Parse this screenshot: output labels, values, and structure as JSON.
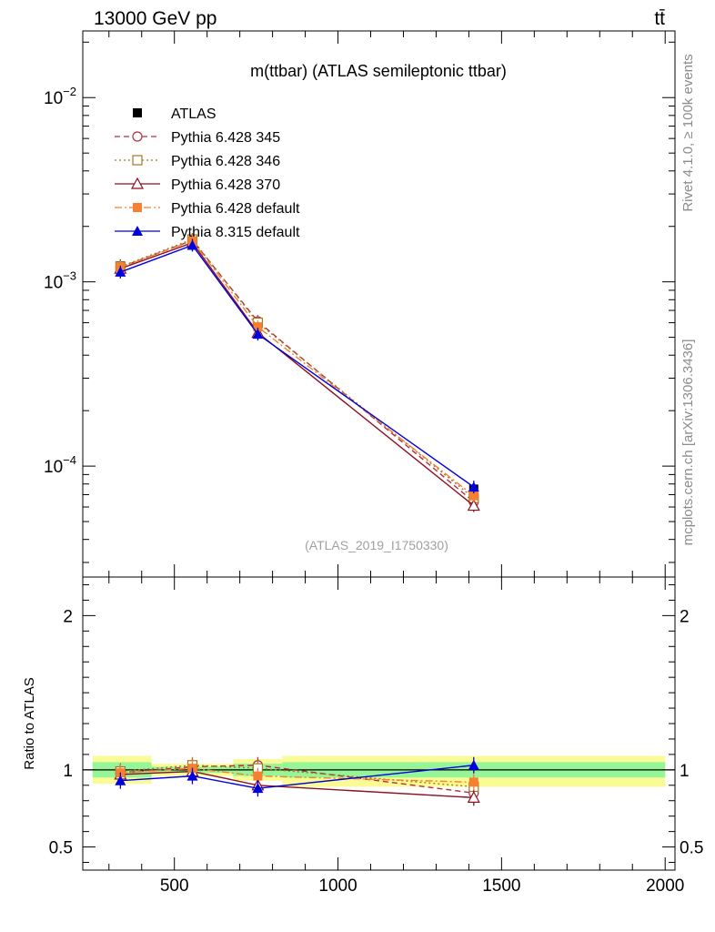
{
  "header": {
    "left": "13000 GeV pp",
    "right": "tt̄"
  },
  "side_labels": {
    "rivet": "Rivet 4.1.0, ≥ 100k events",
    "mcplots": "mcplots.cern.ch [arXiv:1306.3436]"
  },
  "chart_data": [
    {
      "type": "line",
      "panel": "main",
      "title": "m(ttbar) (ATLAS semileptonic ttbar)",
      "watermark": "(ATLAS_2019_I1750330)",
      "xlabel": "",
      "ylabel": "",
      "yscale": "log",
      "xlim": [
        220,
        2030
      ],
      "ylim": [
        2.5e-05,
        0.023
      ],
      "y_ticks": [
        {
          "value": 0.01,
          "base": "10",
          "exp": "−2"
        },
        {
          "value": 0.001,
          "base": "10",
          "exp": "−3"
        },
        {
          "value": 0.0001,
          "base": "10",
          "exp": "−4"
        }
      ],
      "x": [
        335,
        555,
        755,
        1415
      ],
      "bin_edges": [
        250,
        430,
        680,
        830,
        2000
      ],
      "legend": [
        {
          "name": "ATLAS",
          "color": "#000000",
          "marker": "square-filled",
          "dash": "none"
        },
        {
          "name": "Pythia 6.428 345",
          "color": "#b03040",
          "marker": "circle-open",
          "dash": "dashed"
        },
        {
          "name": "Pythia 6.428 346",
          "color": "#a07828",
          "marker": "square-open",
          "dash": "dotted"
        },
        {
          "name": "Pythia 6.428 370",
          "color": "#8b1020",
          "marker": "triangle-open",
          "dash": "solid"
        },
        {
          "name": "Pythia 6.428 default",
          "color": "#f58030",
          "marker": "square-filled",
          "dash": "dashdot"
        },
        {
          "name": "Pythia 8.315 default",
          "color": "#0000dd",
          "marker": "triangle-filled",
          "dash": "solid"
        }
      ],
      "series": [
        {
          "name": "ATLAS",
          "values": [
            0.00122,
            0.00165,
            0.00059,
            7.5e-05
          ]
        },
        {
          "name": "Pythia 6.428 345",
          "values": [
            0.0012,
            0.00168,
            0.00061,
            6.4e-05
          ]
        },
        {
          "name": "Pythia 6.428 346",
          "values": [
            0.00121,
            0.0017,
            0.0006,
            6.7e-05
          ]
        },
        {
          "name": "Pythia 6.428 370",
          "values": [
            0.00118,
            0.00163,
            0.00053,
            6.1e-05
          ]
        },
        {
          "name": "Pythia 6.428 default",
          "values": [
            0.0012,
            0.00167,
            0.00057,
            6.9e-05
          ]
        },
        {
          "name": "Pythia 8.315 default",
          "values": [
            0.00113,
            0.00158,
            0.00052,
            7.7e-05
          ]
        }
      ]
    },
    {
      "type": "line",
      "panel": "ratio",
      "xlabel": "",
      "ylabel": "Ratio to ATLAS",
      "yscale": "linear",
      "xlim": [
        220,
        2030
      ],
      "ylim": [
        0.35,
        2.25
      ],
      "x_ticks": [
        500,
        1000,
        1500,
        2000
      ],
      "y_ticks": [
        0.5,
        1,
        2
      ],
      "x": [
        335,
        555,
        755,
        1415
      ],
      "band_bins": [
        {
          "x_lo": 250,
          "x_hi": 430,
          "inner": [
            0.95,
            1.05
          ],
          "outer": [
            0.91,
            1.09
          ]
        },
        {
          "x_lo": 430,
          "x_hi": 680,
          "inner": [
            0.98,
            1.02
          ],
          "outer": [
            0.96,
            1.04
          ]
        },
        {
          "x_lo": 680,
          "x_hi": 830,
          "inner": [
            0.96,
            1.04
          ],
          "outer": [
            0.93,
            1.07
          ]
        },
        {
          "x_lo": 830,
          "x_hi": 2000,
          "inner": [
            0.95,
            1.05
          ],
          "outer": [
            0.89,
            1.09
          ]
        }
      ],
      "series": [
        {
          "name": "Pythia 6.428 345",
          "values": [
            0.98,
            1.02,
            1.03,
            0.85
          ]
        },
        {
          "name": "Pythia 6.428 346",
          "values": [
            0.99,
            1.03,
            1.01,
            0.89
          ]
        },
        {
          "name": "Pythia 6.428 370",
          "values": [
            0.97,
            0.99,
            0.9,
            0.82
          ]
        },
        {
          "name": "Pythia 6.428 default",
          "values": [
            0.98,
            1.01,
            0.96,
            0.92
          ]
        },
        {
          "name": "Pythia 8.315 default",
          "values": [
            0.93,
            0.96,
            0.88,
            1.03
          ]
        }
      ]
    }
  ]
}
